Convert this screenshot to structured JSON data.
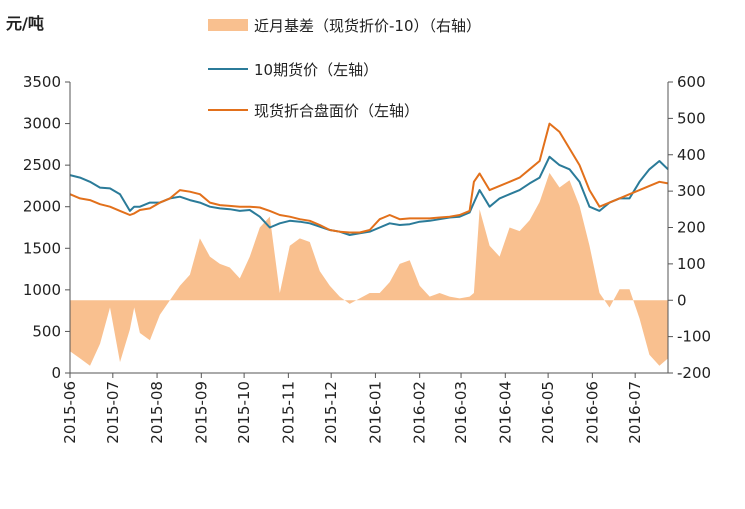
{
  "chart_data": {
    "type": "line",
    "unit_label": "元/吨",
    "title": "",
    "xlabel": "",
    "ylabel": "",
    "y_left": {
      "min": 0,
      "max": 3500,
      "ticks": [
        0,
        500,
        1000,
        1500,
        2000,
        2500,
        3000,
        3500
      ]
    },
    "y_right": {
      "min": -200,
      "max": 600,
      "ticks": [
        -200,
        -100,
        0,
        100,
        200,
        300,
        400,
        500,
        600
      ]
    },
    "x_range": [
      "2015-06-01",
      "2016-07-24"
    ],
    "x_ticks": [
      "2015-06",
      "2015-07",
      "2015-08",
      "2015-09",
      "2015-10",
      "2015-11",
      "2015-12",
      "2016-01",
      "2016-02",
      "2016-03",
      "2016-04",
      "2016-05",
      "2016-06",
      "2016-07"
    ],
    "legend_position": "top",
    "colors": {
      "basis": "#f9c08f",
      "futures": "#2b7b99",
      "spot": "#e2701b",
      "axis": "#555555"
    },
    "series": [
      {
        "name": "近月基差（现货折价-10）（右轴）",
        "type": "area",
        "axis": "right",
        "x": [
          "2015-06-01",
          "2015-06-08",
          "2015-06-15",
          "2015-06-22",
          "2015-06-29",
          "2015-07-06",
          "2015-07-13",
          "2015-07-16",
          "2015-07-20",
          "2015-07-27",
          "2015-08-03",
          "2015-08-10",
          "2015-08-17",
          "2015-08-24",
          "2015-08-31",
          "2015-09-07",
          "2015-09-14",
          "2015-09-21",
          "2015-09-28",
          "2015-10-05",
          "2015-10-12",
          "2015-10-19",
          "2015-10-26",
          "2015-11-02",
          "2015-11-09",
          "2015-11-16",
          "2015-11-23",
          "2015-11-30",
          "2015-12-07",
          "2015-12-14",
          "2015-12-21",
          "2015-12-28",
          "2016-01-04",
          "2016-01-11",
          "2016-01-18",
          "2016-01-25",
          "2016-02-01",
          "2016-02-08",
          "2016-02-15",
          "2016-02-22",
          "2016-02-29",
          "2016-03-07",
          "2016-03-10",
          "2016-03-14",
          "2016-03-21",
          "2016-03-28",
          "2016-04-04",
          "2016-04-11",
          "2016-04-18",
          "2016-04-25",
          "2016-05-02",
          "2016-05-09",
          "2016-05-16",
          "2016-05-23",
          "2016-05-30",
          "2016-06-06",
          "2016-06-13",
          "2016-06-20",
          "2016-06-27",
          "2016-07-04",
          "2016-07-11",
          "2016-07-18",
          "2016-07-24"
        ],
        "values": [
          -140,
          -160,
          -180,
          -120,
          -20,
          -170,
          -80,
          -20,
          -90,
          -110,
          -40,
          0,
          40,
          70,
          170,
          120,
          100,
          90,
          60,
          120,
          200,
          230,
          20,
          150,
          170,
          160,
          80,
          40,
          10,
          -10,
          5,
          20,
          20,
          50,
          100,
          110,
          40,
          10,
          20,
          10,
          5,
          10,
          20,
          250,
          150,
          120,
          200,
          190,
          220,
          270,
          350,
          310,
          330,
          260,
          150,
          20,
          -20,
          30,
          30,
          -50,
          -150,
          -180,
          -160
        ]
      },
      {
        "name": "10期货价（左轴）",
        "type": "line",
        "axis": "left",
        "x": [
          "2015-06-01",
          "2015-06-08",
          "2015-06-15",
          "2015-06-22",
          "2015-06-29",
          "2015-07-06",
          "2015-07-13",
          "2015-07-16",
          "2015-07-20",
          "2015-07-27",
          "2015-08-03",
          "2015-08-10",
          "2015-08-17",
          "2015-08-24",
          "2015-08-31",
          "2015-09-07",
          "2015-09-14",
          "2015-09-21",
          "2015-09-28",
          "2015-10-05",
          "2015-10-12",
          "2015-10-19",
          "2015-10-26",
          "2015-11-02",
          "2015-11-09",
          "2015-11-16",
          "2015-11-23",
          "2015-11-30",
          "2015-12-07",
          "2015-12-14",
          "2015-12-21",
          "2015-12-28",
          "2016-01-04",
          "2016-01-11",
          "2016-01-18",
          "2016-01-25",
          "2016-02-01",
          "2016-02-08",
          "2016-02-15",
          "2016-02-22",
          "2016-02-29",
          "2016-03-07",
          "2016-03-10",
          "2016-03-14",
          "2016-03-21",
          "2016-03-28",
          "2016-04-04",
          "2016-04-11",
          "2016-04-18",
          "2016-04-25",
          "2016-05-02",
          "2016-05-09",
          "2016-05-16",
          "2016-05-23",
          "2016-05-30",
          "2016-06-06",
          "2016-06-13",
          "2016-06-20",
          "2016-06-27",
          "2016-07-04",
          "2016-07-11",
          "2016-07-18",
          "2016-07-24"
        ],
        "values": [
          2380,
          2350,
          2300,
          2230,
          2220,
          2150,
          1950,
          2000,
          2000,
          2050,
          2050,
          2100,
          2120,
          2080,
          2050,
          2000,
          1980,
          1970,
          1950,
          1960,
          1880,
          1750,
          1800,
          1830,
          1820,
          1800,
          1760,
          1720,
          1700,
          1660,
          1680,
          1700,
          1750,
          1800,
          1780,
          1790,
          1820,
          1830,
          1850,
          1870,
          1880,
          1930,
          2050,
          2200,
          2000,
          2100,
          2150,
          2200,
          2280,
          2350,
          2600,
          2500,
          2450,
          2300,
          2000,
          1950,
          2050,
          2100,
          2100,
          2300,
          2450,
          2550,
          2450
        ]
      },
      {
        "name": "现货折合盘面价（左轴）",
        "type": "line",
        "axis": "left",
        "x": [
          "2015-06-01",
          "2015-06-08",
          "2015-06-15",
          "2015-06-22",
          "2015-06-29",
          "2015-07-06",
          "2015-07-13",
          "2015-07-16",
          "2015-07-20",
          "2015-07-27",
          "2015-08-03",
          "2015-08-10",
          "2015-08-17",
          "2015-08-24",
          "2015-08-31",
          "2015-09-07",
          "2015-09-14",
          "2015-09-21",
          "2015-09-28",
          "2015-10-05",
          "2015-10-12",
          "2015-10-19",
          "2015-10-26",
          "2015-11-02",
          "2015-11-09",
          "2015-11-16",
          "2015-11-23",
          "2015-11-30",
          "2015-12-07",
          "2015-12-14",
          "2015-12-21",
          "2015-12-28",
          "2016-01-04",
          "2016-01-11",
          "2016-01-18",
          "2016-01-25",
          "2016-02-01",
          "2016-02-08",
          "2016-02-15",
          "2016-02-22",
          "2016-02-29",
          "2016-03-07",
          "2016-03-10",
          "2016-03-14",
          "2016-03-21",
          "2016-03-28",
          "2016-04-04",
          "2016-04-11",
          "2016-04-18",
          "2016-04-25",
          "2016-05-02",
          "2016-05-09",
          "2016-05-16",
          "2016-05-23",
          "2016-05-30",
          "2016-06-06",
          "2016-06-13",
          "2016-06-20",
          "2016-06-27",
          "2016-07-04",
          "2016-07-11",
          "2016-07-18",
          "2016-07-24"
        ],
        "values": [
          2150,
          2100,
          2080,
          2030,
          2000,
          1950,
          1900,
          1920,
          1960,
          1980,
          2050,
          2100,
          2200,
          2180,
          2150,
          2050,
          2020,
          2010,
          2000,
          2000,
          1990,
          1950,
          1900,
          1880,
          1850,
          1830,
          1780,
          1720,
          1700,
          1690,
          1690,
          1720,
          1850,
          1900,
          1850,
          1860,
          1860,
          1860,
          1870,
          1880,
          1900,
          1950,
          2300,
          2400,
          2200,
          2250,
          2300,
          2350,
          2450,
          2550,
          3000,
          2900,
          2700,
          2500,
          2200,
          2000,
          2050,
          2100,
          2150,
          2200,
          2250,
          2300,
          2280
        ]
      }
    ]
  }
}
